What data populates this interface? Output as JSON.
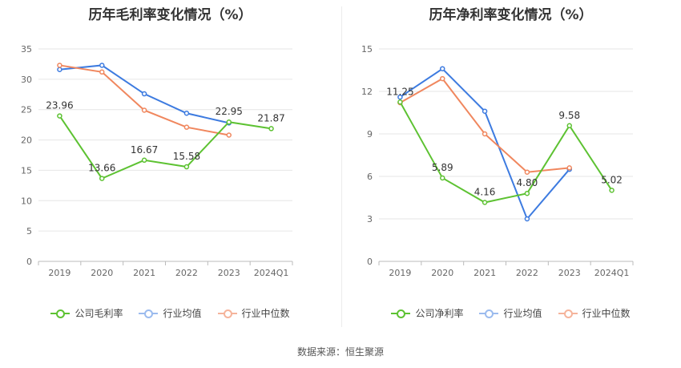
{
  "source": "数据来源：恒生聚源",
  "colors": {
    "company": "#5dc232",
    "avg": "#3d7be0",
    "median": "#f0875e"
  },
  "chart_data": [
    {
      "type": "line",
      "title": "历年毛利率变化情况（%）",
      "categories": [
        "2019",
        "2020",
        "2021",
        "2022",
        "2023",
        "2024Q1"
      ],
      "ylim": [
        0,
        35
      ],
      "yticks": [
        0,
        5,
        10,
        15,
        20,
        25,
        30,
        35
      ],
      "series": [
        {
          "name": "公司毛利率",
          "key": "company",
          "values": [
            23.96,
            13.66,
            16.67,
            15.58,
            22.95,
            21.87
          ],
          "labels": [
            "23.96",
            "13.66",
            "16.67",
            "15.58",
            "22.95",
            "21.87"
          ]
        },
        {
          "name": "行业均值",
          "key": "avg",
          "values": [
            31.6,
            32.3,
            27.6,
            24.4,
            22.8,
            null
          ]
        },
        {
          "name": "行业中位数",
          "key": "median",
          "values": [
            32.3,
            31.2,
            24.9,
            22.1,
            20.8,
            null
          ]
        }
      ]
    },
    {
      "type": "line",
      "title": "历年净利率变化情况（%）",
      "categories": [
        "2019",
        "2020",
        "2021",
        "2022",
        "2023",
        "2024Q1"
      ],
      "ylim": [
        0,
        15
      ],
      "yticks": [
        0,
        3,
        6,
        9,
        12,
        15
      ],
      "series": [
        {
          "name": "公司净利率",
          "key": "company",
          "values": [
            11.25,
            5.89,
            4.16,
            4.8,
            9.58,
            5.02
          ],
          "labels": [
            "11.25",
            "5.89",
            "4.16",
            "4.80",
            "9.58",
            "5.02"
          ]
        },
        {
          "name": "行业均值",
          "key": "avg",
          "values": [
            11.6,
            13.6,
            10.6,
            3.0,
            6.5,
            null
          ]
        },
        {
          "name": "行业中位数",
          "key": "median",
          "values": [
            11.2,
            12.9,
            9.0,
            6.3,
            6.6,
            null
          ]
        }
      ]
    }
  ]
}
